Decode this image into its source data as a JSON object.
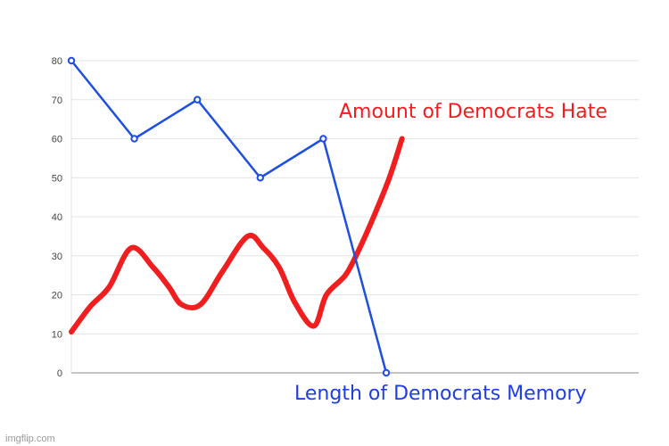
{
  "chart_data": {
    "type": "line",
    "title": "",
    "xlabel": "",
    "ylabel": "",
    "ylim": [
      0,
      80
    ],
    "yticks": [
      0,
      10,
      20,
      30,
      40,
      50,
      60,
      70,
      80
    ],
    "grid": true,
    "series": [
      {
        "name": "",
        "color": "#1f4fe0",
        "style": "line-with-markers",
        "x": [
          0,
          1,
          2,
          3,
          4,
          5
        ],
        "values": [
          80,
          60,
          70,
          50,
          60,
          0
        ]
      },
      {
        "name": "",
        "color": "#f01e1e",
        "style": "hand-drawn",
        "x": [
          0,
          0.3,
          0.6,
          0.95,
          1.3,
          1.55,
          1.75,
          2.05,
          2.4,
          2.8,
          3.05,
          3.3,
          3.55,
          3.85,
          4.05,
          4.35,
          4.55,
          4.8,
          5.05,
          5.25
        ],
        "values": [
          10.5,
          17,
          22,
          32,
          27,
          22,
          17.5,
          17.5,
          26,
          35,
          32,
          27,
          18,
          12,
          20,
          25,
          31,
          40,
          50,
          60
        ]
      }
    ],
    "annotations": [
      {
        "text": "Amount of Democrats Hate",
        "color": "#f01e1e"
      },
      {
        "text": "Length of Democrats Memory",
        "color": "#1f3ee0"
      }
    ]
  },
  "watermark": "imgflip.com"
}
